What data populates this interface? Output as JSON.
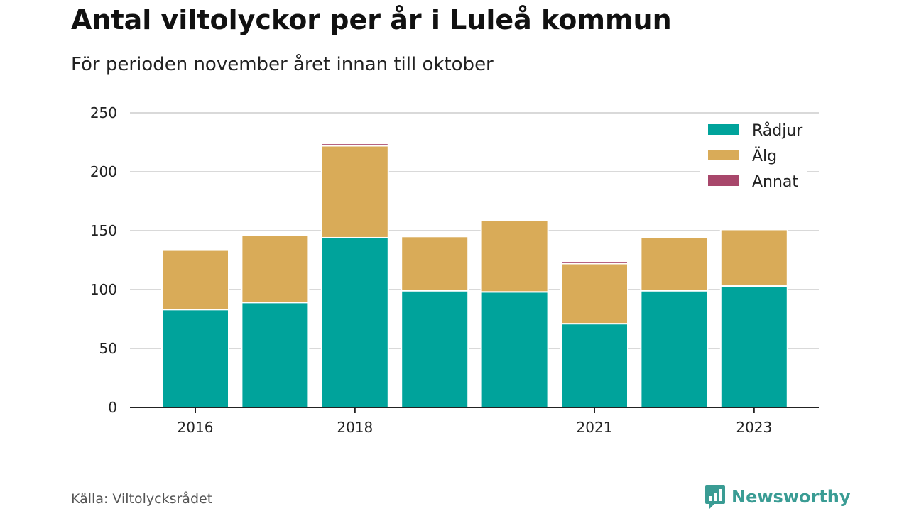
{
  "header": {
    "title": "Antal viltolyckor per år i Luleå kommun",
    "subtitle": "För perioden november året innan till oktober"
  },
  "footer": {
    "source": "Källa: Viltolycksrådet",
    "brand": "Newsworthy"
  },
  "chart_data": {
    "type": "bar",
    "stacked": true,
    "title": "Antal viltolyckor per år i Luleå kommun",
    "subtitle": "För perioden november året innan till oktober",
    "xlabel": "",
    "ylabel": "",
    "categories": [
      "2016",
      "2017",
      "2018",
      "2019",
      "2020",
      "2021",
      "2022",
      "2023"
    ],
    "x_tick_labels": [
      "2016",
      "2018",
      "2021",
      "2023"
    ],
    "y_ticks": [
      0,
      50,
      100,
      150,
      200,
      250
    ],
    "ylim": [
      0,
      250
    ],
    "grid": true,
    "legend_position": "top-right",
    "series": [
      {
        "name": "Rådjur",
        "color": "#00a39b",
        "values": [
          83,
          89,
          144,
          99,
          98,
          71,
          99,
          103
        ]
      },
      {
        "name": "Älg",
        "color": "#d9ab58",
        "values": [
          51,
          57,
          78,
          46,
          61,
          51,
          45,
          48
        ]
      },
      {
        "name": "Annat",
        "color": "#a8476b",
        "values": [
          0,
          0,
          2,
          0,
          0,
          2,
          1,
          1
        ]
      }
    ]
  }
}
